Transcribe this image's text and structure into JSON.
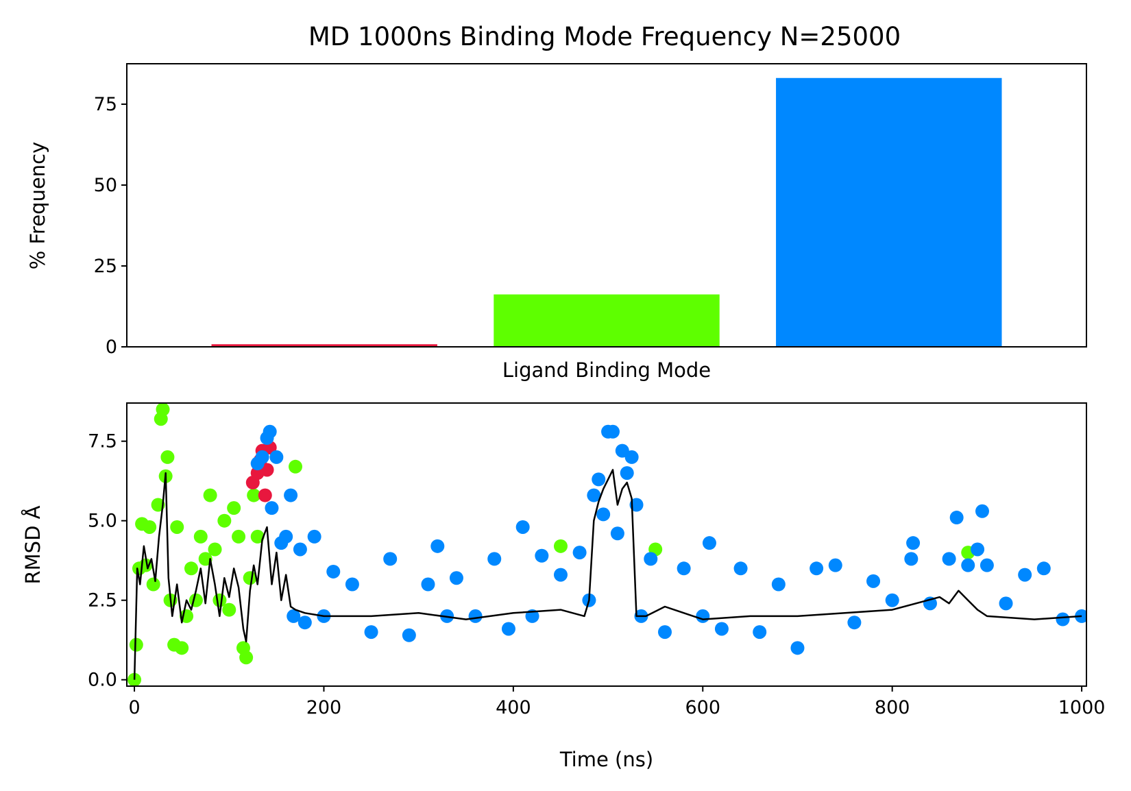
{
  "figure_title": "MD 1000ns Binding Mode Frequency N=25000",
  "colors": {
    "mode1": "#e8173e",
    "mode2": "#5eff00",
    "mode3": "#0088ff",
    "trace": "#000000"
  },
  "chart_data": [
    {
      "type": "bar",
      "title": "MD 1000ns Binding Mode Frequency N=25000",
      "xlabel": "Ligand Binding Mode",
      "ylabel": "% Frequency",
      "categories": [
        "",
        "",
        ""
      ],
      "values": [
        0.8,
        16.2,
        83.1
      ],
      "bar_colors": [
        "#e8173e",
        "#5eff00",
        "#0088ff"
      ],
      "ylim": [
        0,
        87.5
      ],
      "yticks": [
        0,
        25,
        50,
        75
      ],
      "ytick_labels": [
        "0",
        "25",
        "50",
        "75"
      ],
      "xticks_shown": false,
      "grid": false
    },
    {
      "type": "scatter",
      "xlabel": "Time (ns)",
      "ylabel": "RMSD Å",
      "xlim": [
        -8,
        1005
      ],
      "ylim": [
        -0.2,
        8.7
      ],
      "xticks": [
        0,
        200,
        400,
        600,
        800,
        1000
      ],
      "xtick_labels": [
        "0",
        "200",
        "400",
        "600",
        "800",
        "1000"
      ],
      "yticks": [
        0.0,
        2.5,
        5.0,
        7.5
      ],
      "ytick_labels": [
        "0.0",
        "2.5",
        "5.0",
        "7.5"
      ],
      "grid": false,
      "series": [
        {
          "color": "#5eff00",
          "x": [
            0,
            2,
            5,
            8,
            12,
            16,
            20,
            25,
            28,
            30,
            33,
            35,
            38,
            42,
            45,
            50,
            55,
            60,
            65,
            70,
            75,
            80,
            85,
            90,
            95,
            100,
            105,
            110,
            115,
            118,
            122,
            126,
            130,
            170,
            450,
            550,
            880
          ],
          "y": [
            0.0,
            1.1,
            3.5,
            4.9,
            3.6,
            4.8,
            3.0,
            5.5,
            8.2,
            8.5,
            6.4,
            7.0,
            2.5,
            1.1,
            4.8,
            1.0,
            2.0,
            3.5,
            2.5,
            4.5,
            3.8,
            5.8,
            4.1,
            2.5,
            5.0,
            2.2,
            5.4,
            4.5,
            1.0,
            0.7,
            3.2,
            5.8,
            4.5,
            6.7,
            4.2,
            4.1,
            4.0
          ]
        },
        {
          "color": "#e8173e",
          "x": [
            125,
            130,
            133,
            135,
            138,
            140,
            143
          ],
          "y": [
            6.2,
            6.5,
            6.9,
            7.2,
            5.8,
            6.6,
            7.3
          ]
        },
        {
          "color": "#0088ff",
          "x": [
            130,
            135,
            140,
            143,
            145,
            150,
            155,
            160,
            165,
            168,
            175,
            180,
            190,
            200,
            210,
            230,
            250,
            270,
            290,
            310,
            320,
            330,
            340,
            360,
            380,
            395,
            410,
            420,
            430,
            450,
            470,
            480,
            485,
            490,
            495,
            500,
            505,
            510,
            515,
            520,
            525,
            530,
            535,
            545,
            560,
            580,
            600,
            607,
            620,
            640,
            660,
            680,
            700,
            720,
            740,
            760,
            780,
            800,
            820,
            822,
            840,
            860,
            868,
            880,
            890,
            895,
            900,
            920,
            940,
            960,
            980,
            1000
          ],
          "y": [
            6.8,
            7.0,
            7.6,
            7.8,
            5.4,
            7.0,
            4.3,
            4.5,
            5.8,
            2.0,
            4.1,
            1.8,
            4.5,
            2.0,
            3.4,
            3.0,
            1.5,
            3.8,
            1.4,
            3.0,
            4.2,
            2.0,
            3.2,
            2.0,
            3.8,
            1.6,
            4.8,
            2.0,
            3.9,
            3.3,
            4.0,
            2.5,
            5.8,
            6.3,
            5.2,
            7.8,
            7.8,
            4.6,
            7.2,
            6.5,
            7.0,
            5.5,
            2.0,
            3.8,
            1.5,
            3.5,
            2.0,
            4.3,
            1.6,
            3.5,
            1.5,
            3.0,
            1.0,
            3.5,
            3.6,
            1.8,
            3.1,
            2.5,
            3.8,
            4.3,
            2.4,
            3.8,
            5.1,
            3.6,
            4.1,
            5.3,
            3.6,
            2.4,
            3.3,
            3.5,
            1.9,
            2.0
          ]
        }
      ],
      "trace": {
        "color": "#000000",
        "x": [
          0,
          3,
          6,
          10,
          14,
          18,
          22,
          26,
          30,
          33,
          36,
          40,
          45,
          50,
          55,
          60,
          65,
          70,
          75,
          80,
          85,
          90,
          95,
          100,
          105,
          110,
          115,
          118,
          122,
          126,
          130,
          135,
          140,
          145,
          150,
          155,
          160,
          165,
          170,
          180,
          200,
          250,
          300,
          350,
          400,
          450,
          475,
          480,
          485,
          490,
          495,
          500,
          505,
          510,
          515,
          520,
          525,
          530,
          535,
          540,
          560,
          600,
          650,
          700,
          750,
          800,
          850,
          860,
          870,
          880,
          890,
          900,
          950,
          1000
        ],
        "y": [
          0.0,
          3.5,
          3.0,
          4.2,
          3.5,
          3.8,
          3.1,
          4.5,
          5.5,
          6.5,
          3.2,
          2.0,
          3.0,
          1.8,
          2.5,
          2.2,
          2.8,
          3.5,
          2.4,
          3.8,
          3.0,
          2.0,
          3.2,
          2.6,
          3.5,
          2.9,
          1.6,
          1.2,
          2.8,
          3.6,
          3.0,
          4.4,
          4.8,
          3.0,
          4.0,
          2.5,
          3.3,
          2.3,
          2.2,
          2.1,
          2.0,
          2.0,
          2.1,
          1.9,
          2.1,
          2.2,
          2.0,
          2.5,
          5.0,
          5.6,
          6.0,
          6.3,
          6.6,
          5.5,
          6.0,
          6.2,
          5.7,
          2.0,
          2.0,
          2.0,
          2.3,
          1.9,
          2.0,
          2.0,
          2.1,
          2.2,
          2.6,
          2.4,
          2.8,
          2.5,
          2.2,
          2.0,
          1.9,
          2.0
        ]
      }
    }
  ]
}
